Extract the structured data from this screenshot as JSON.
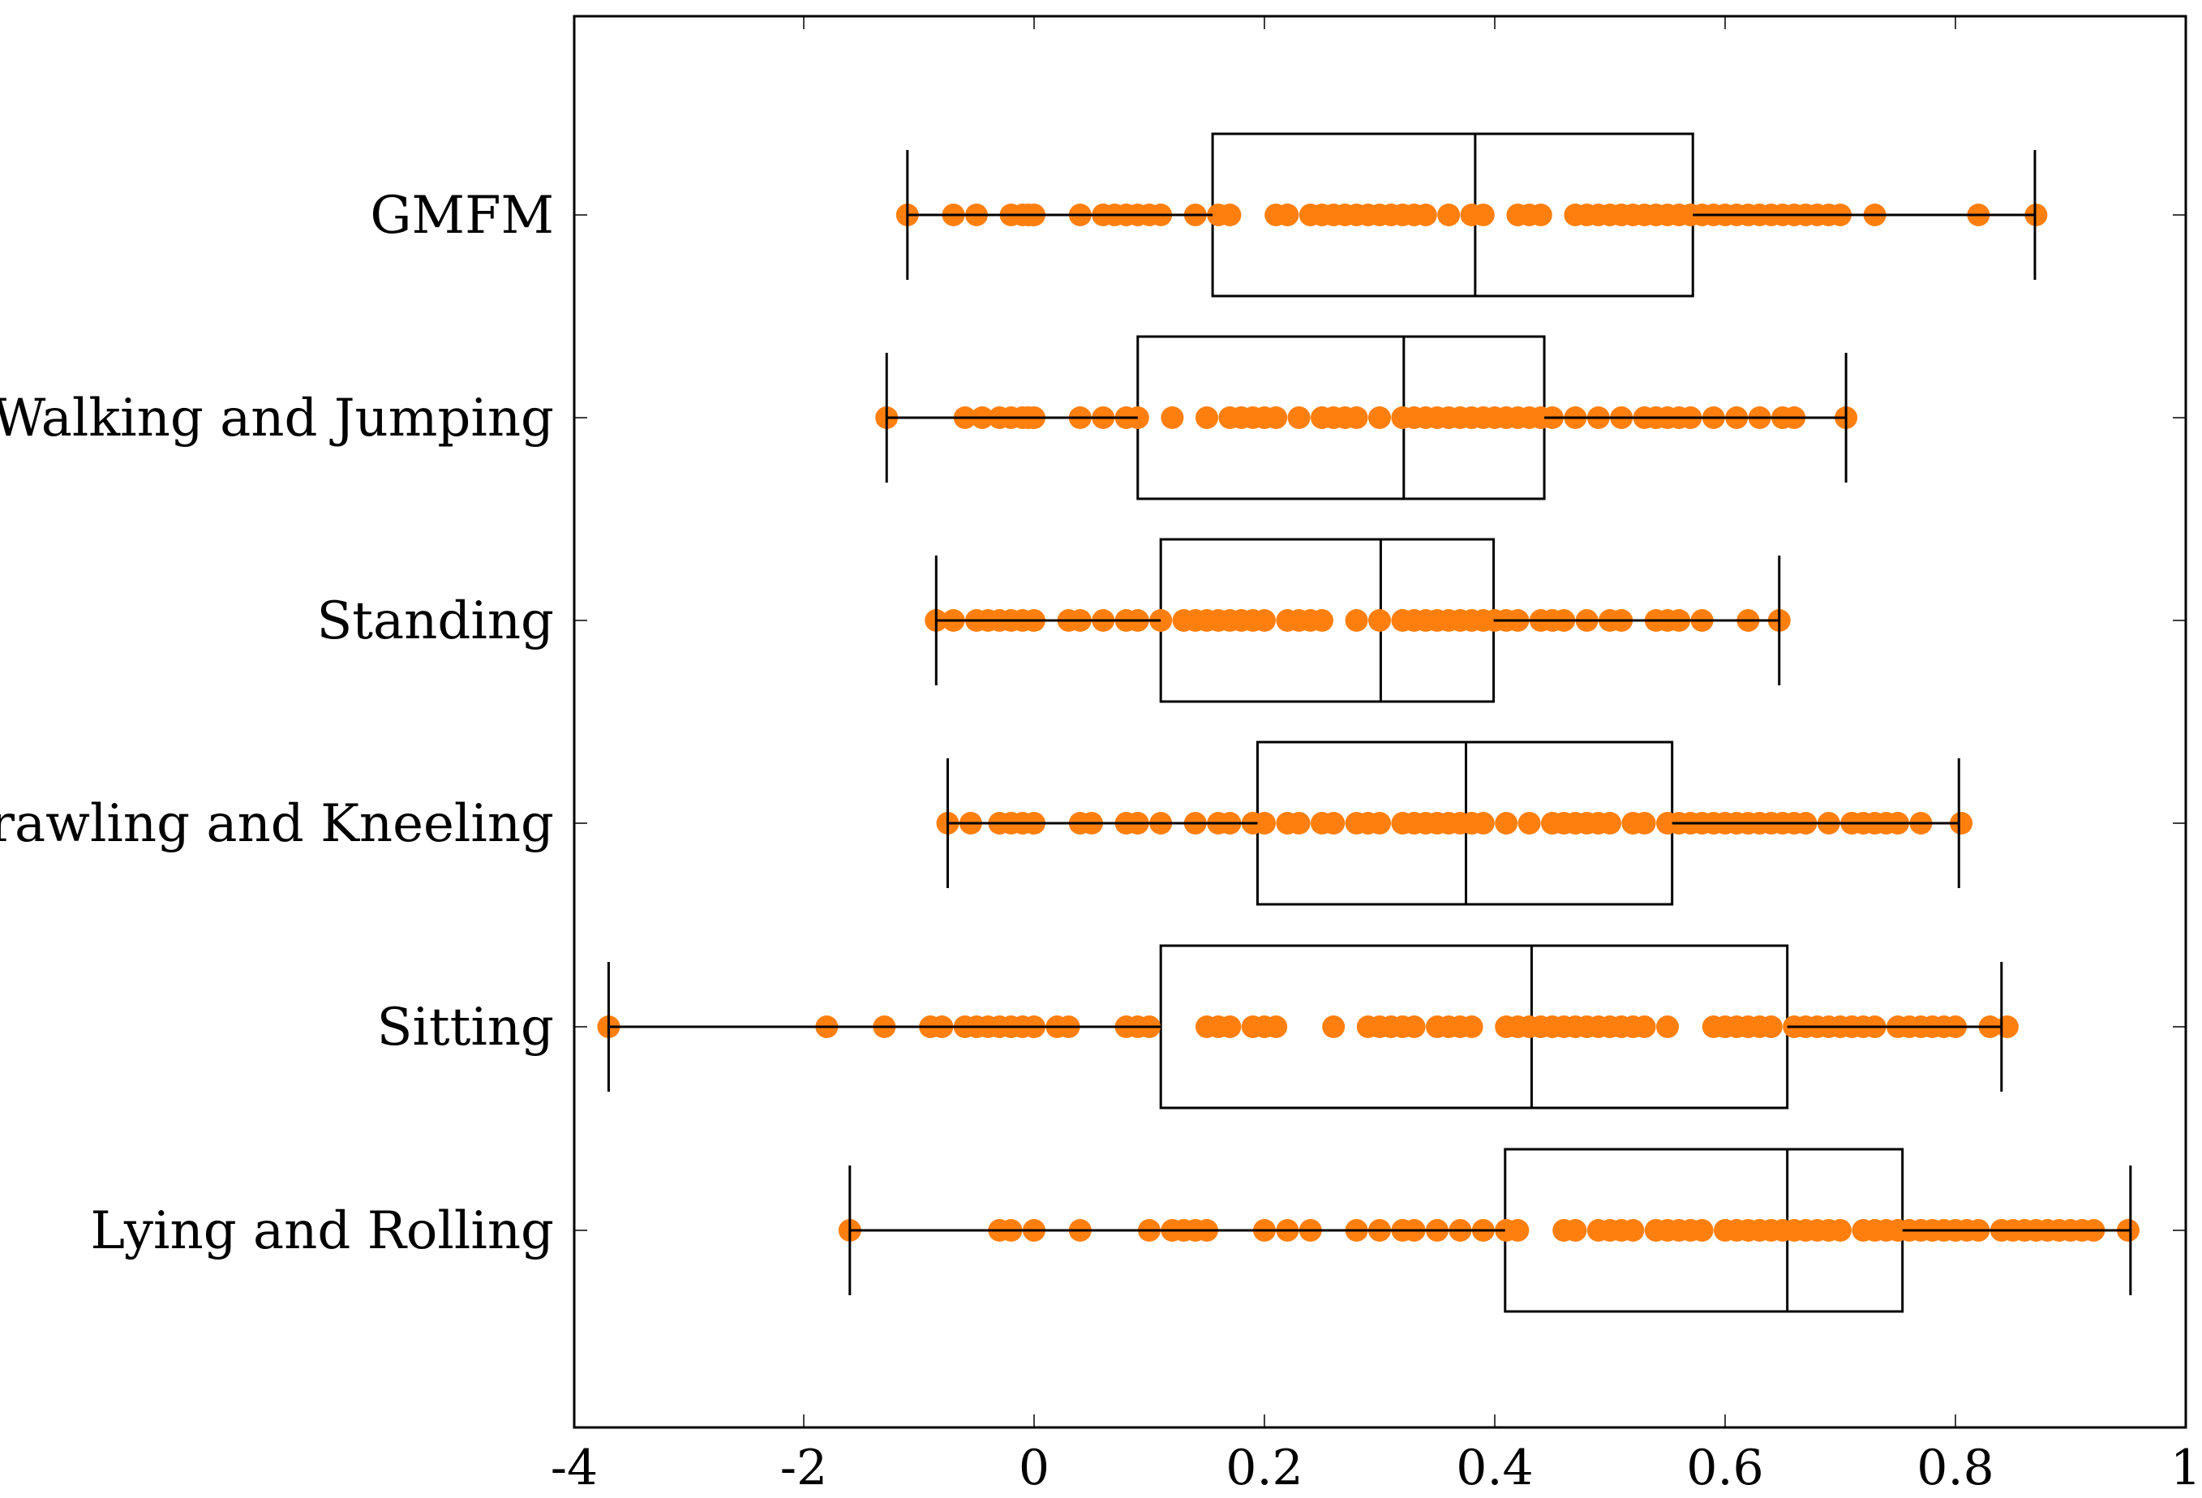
{
  "chart_data": {
    "type": "box",
    "orientation": "horizontal",
    "title": "",
    "xlabel": "",
    "ylabel": "",
    "x_tick_labels": [
      "-4",
      "-2",
      "0",
      "0.2",
      "0.4",
      "0.6",
      "0.8",
      "1"
    ],
    "point_color": "#ff7f0e",
    "box_color": "#000000",
    "categories": [
      "GMFM",
      "Walking and Jumping",
      "Standing",
      "Crawling and Kneeling",
      "Sitting",
      "Lying and Rolling"
    ],
    "series": [
      {
        "name": "GMFM",
        "whisker_low": -1.1,
        "q1": 0.155,
        "median": 0.383,
        "q3": 0.572,
        "whisker_high": 0.869,
        "points": [
          -1.1,
          -0.7,
          -0.5,
          -0.2,
          -0.1,
          -0.05,
          0,
          0.04,
          0.06,
          0.07,
          0.08,
          0.09,
          0.1,
          0.11,
          0.14,
          0.16,
          0.17,
          0.21,
          0.22,
          0.24,
          0.25,
          0.26,
          0.27,
          0.28,
          0.29,
          0.3,
          0.31,
          0.32,
          0.33,
          0.34,
          0.36,
          0.38,
          0.39,
          0.42,
          0.43,
          0.44,
          0.47,
          0.48,
          0.49,
          0.5,
          0.51,
          0.52,
          0.53,
          0.54,
          0.55,
          0.56,
          0.57,
          0.58,
          0.59,
          0.6,
          0.61,
          0.62,
          0.63,
          0.64,
          0.65,
          0.66,
          0.67,
          0.68,
          0.69,
          0.7,
          0.73,
          0.82,
          0.87
        ]
      },
      {
        "name": "Walking and Jumping",
        "whisker_low": -1.28,
        "q1": 0.09,
        "median": 0.321,
        "q3": 0.443,
        "whisker_high": 0.705,
        "points": [
          -1.28,
          -0.6,
          -0.45,
          -0.3,
          -0.2,
          -0.1,
          -0.05,
          0,
          0.04,
          0.06,
          0.08,
          0.09,
          0.12,
          0.15,
          0.17,
          0.18,
          0.19,
          0.2,
          0.21,
          0.23,
          0.25,
          0.26,
          0.27,
          0.28,
          0.3,
          0.32,
          0.33,
          0.34,
          0.35,
          0.36,
          0.37,
          0.38,
          0.39,
          0.4,
          0.41,
          0.42,
          0.43,
          0.44,
          0.45,
          0.47,
          0.49,
          0.51,
          0.53,
          0.54,
          0.55,
          0.56,
          0.57,
          0.59,
          0.61,
          0.63,
          0.65,
          0.66,
          0.705
        ]
      },
      {
        "name": "Standing",
        "whisker_low": -0.85,
        "q1": 0.11,
        "median": 0.301,
        "q3": 0.399,
        "whisker_high": 0.647,
        "points": [
          -0.85,
          -0.7,
          -0.5,
          -0.4,
          -0.3,
          -0.2,
          -0.1,
          0,
          0.03,
          0.04,
          0.06,
          0.08,
          0.09,
          0.11,
          0.13,
          0.14,
          0.15,
          0.16,
          0.17,
          0.18,
          0.19,
          0.2,
          0.22,
          0.23,
          0.24,
          0.25,
          0.28,
          0.3,
          0.32,
          0.33,
          0.34,
          0.35,
          0.36,
          0.37,
          0.38,
          0.39,
          0.4,
          0.41,
          0.42,
          0.44,
          0.45,
          0.46,
          0.48,
          0.5,
          0.51,
          0.54,
          0.55,
          0.56,
          0.58,
          0.62,
          0.647
        ]
      },
      {
        "name": "Crawling and Kneeling",
        "whisker_low": -0.75,
        "q1": 0.194,
        "median": 0.375,
        "q3": 0.554,
        "whisker_high": 0.803,
        "points": [
          -0.75,
          -0.55,
          -0.3,
          -0.2,
          -0.1,
          0,
          0.04,
          0.05,
          0.08,
          0.09,
          0.11,
          0.14,
          0.16,
          0.17,
          0.19,
          0.2,
          0.22,
          0.23,
          0.25,
          0.26,
          0.28,
          0.29,
          0.3,
          0.32,
          0.33,
          0.34,
          0.35,
          0.36,
          0.37,
          0.38,
          0.39,
          0.41,
          0.43,
          0.45,
          0.46,
          0.47,
          0.48,
          0.49,
          0.5,
          0.52,
          0.53,
          0.55,
          0.56,
          0.57,
          0.58,
          0.59,
          0.6,
          0.61,
          0.62,
          0.63,
          0.64,
          0.65,
          0.66,
          0.67,
          0.69,
          0.71,
          0.72,
          0.73,
          0.74,
          0.75,
          0.77,
          0.805
        ]
      },
      {
        "name": "Sitting",
        "whisker_low": -3.7,
        "q1": 0.11,
        "median": 0.432,
        "q3": 0.654,
        "whisker_high": 0.84,
        "points": [
          -3.7,
          -1.8,
          -1.3,
          -0.9,
          -0.8,
          -0.6,
          -0.5,
          -0.4,
          -0.3,
          -0.2,
          -0.1,
          0,
          0.02,
          0.03,
          0.08,
          0.09,
          0.1,
          0.15,
          0.16,
          0.17,
          0.19,
          0.2,
          0.21,
          0.26,
          0.29,
          0.3,
          0.31,
          0.32,
          0.33,
          0.35,
          0.36,
          0.37,
          0.38,
          0.41,
          0.42,
          0.43,
          0.44,
          0.45,
          0.46,
          0.47,
          0.48,
          0.49,
          0.5,
          0.51,
          0.52,
          0.53,
          0.55,
          0.59,
          0.6,
          0.61,
          0.62,
          0.63,
          0.64,
          0.66,
          0.67,
          0.68,
          0.69,
          0.7,
          0.71,
          0.72,
          0.73,
          0.75,
          0.76,
          0.77,
          0.78,
          0.79,
          0.8,
          0.83,
          0.845
        ]
      },
      {
        "name": "Lying and Rolling",
        "whisker_low": -1.6,
        "q1": 0.409,
        "median": 0.654,
        "q3": 0.754,
        "whisker_high": 0.952,
        "points": [
          -1.6,
          -0.3,
          -0.2,
          0,
          0.04,
          0.1,
          0.12,
          0.13,
          0.14,
          0.15,
          0.2,
          0.22,
          0.24,
          0.28,
          0.3,
          0.32,
          0.33,
          0.35,
          0.37,
          0.39,
          0.41,
          0.42,
          0.46,
          0.47,
          0.49,
          0.5,
          0.51,
          0.52,
          0.54,
          0.55,
          0.56,
          0.57,
          0.58,
          0.6,
          0.61,
          0.62,
          0.63,
          0.64,
          0.65,
          0.66,
          0.67,
          0.68,
          0.69,
          0.7,
          0.72,
          0.73,
          0.74,
          0.75,
          0.76,
          0.77,
          0.78,
          0.79,
          0.8,
          0.81,
          0.82,
          0.84,
          0.85,
          0.86,
          0.87,
          0.88,
          0.89,
          0.9,
          0.91,
          0.92,
          0.95
        ]
      }
    ]
  }
}
